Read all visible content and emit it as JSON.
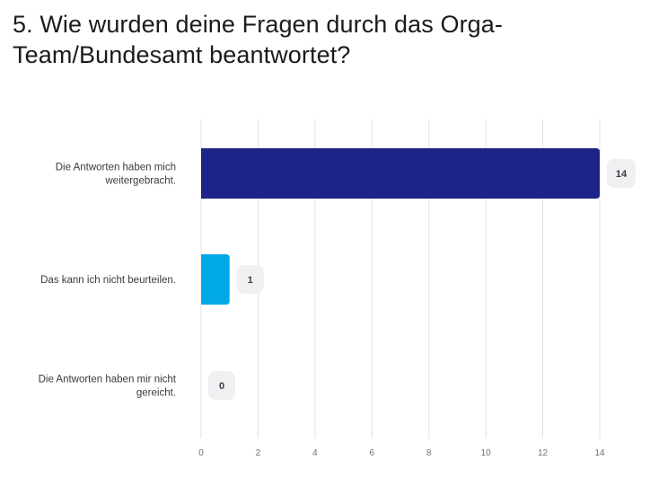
{
  "question_title": "5. Wie wurden deine Fragen durch das Orga-Team/Bundesamt beantwortet?",
  "chart_data": {
    "type": "bar",
    "orientation": "horizontal",
    "categories": [
      "Die Antworten haben mich weitergebracht.",
      "Das kann ich nicht beurteilen.",
      "Die Antworten haben mir nicht gereicht."
    ],
    "category_label_lines": [
      [
        "Die Antworten haben mich",
        "weitergebracht."
      ],
      [
        "Das kann ich nicht beurteilen."
      ],
      [
        "Die Antworten haben mir nicht",
        "gereicht."
      ]
    ],
    "values": [
      14,
      1,
      0
    ],
    "bar_colors": [
      "#1e2388",
      "#00a8e8",
      "#a0a0a0"
    ],
    "xlim": [
      0,
      14
    ],
    "x_ticks": [
      0,
      2,
      4,
      6,
      8,
      10,
      12,
      14
    ],
    "grid": true,
    "legend": "none",
    "title": "5. Wie wurden deine Fragen durch das Orga-Team/Bundesamt beantwortet?",
    "xlabel": "",
    "ylabel": ""
  }
}
